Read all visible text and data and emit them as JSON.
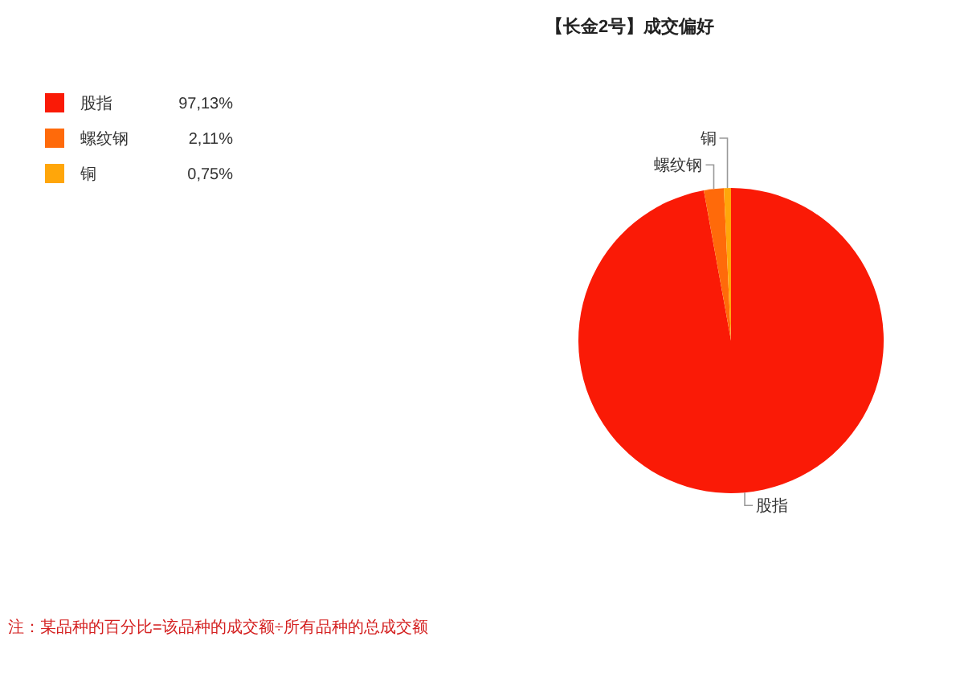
{
  "chart_data": {
    "type": "pie",
    "title": "【长金2号】成交偏好",
    "categories": [
      "股指",
      "螺纹钢",
      "铜"
    ],
    "values": [
      97.13,
      2.11,
      0.75
    ],
    "colors": [
      "#fa1a06",
      "#ff6a0a",
      "#ffa60a"
    ],
    "value_labels": [
      "97,13%",
      "2,11%",
      "0,75%"
    ],
    "legend": "top left",
    "annotations": [
      "注：某品种的百分比=该品种的成交额÷所有品种的总成交额"
    ]
  }
}
